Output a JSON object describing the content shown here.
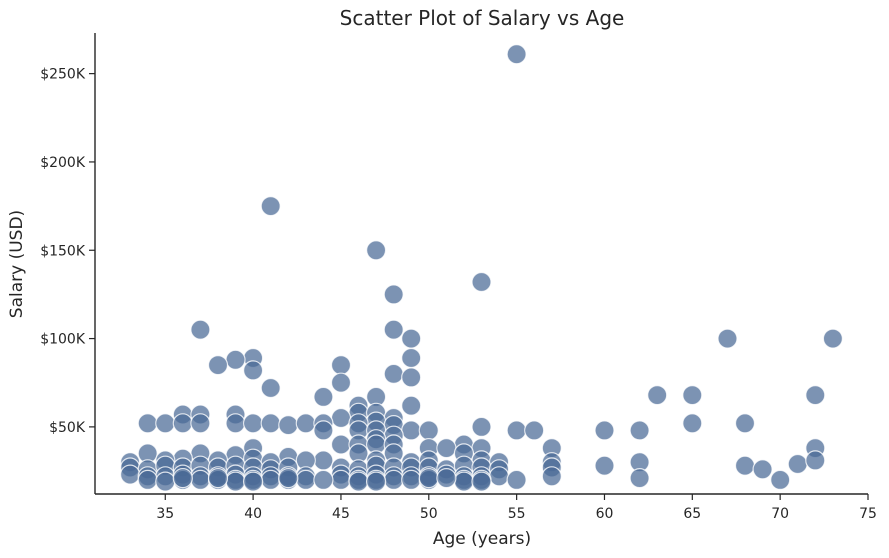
{
  "chart_data": {
    "type": "scatter",
    "title": "Scatter Plot of Salary vs Age",
    "xlabel": "Age (years)",
    "ylabel": "Salary (USD)",
    "xlim": [
      31,
      75
    ],
    "ylim": [
      12000,
      273000
    ],
    "xticks": [
      35,
      40,
      45,
      50,
      55,
      60,
      65,
      70,
      75
    ],
    "yticks": [
      50000,
      100000,
      150000,
      200000,
      250000
    ],
    "ytick_labels": [
      "$50K",
      "$100K",
      "$150K",
      "$200K",
      "$250K"
    ],
    "grid": false,
    "color": "#4a6a96",
    "points": [
      [
        55,
        261000
      ],
      [
        41,
        175000
      ],
      [
        47,
        150000
      ],
      [
        53,
        132000
      ],
      [
        48,
        125000
      ],
      [
        37,
        105000
      ],
      [
        48,
        105000
      ],
      [
        49,
        100000
      ],
      [
        67,
        100000
      ],
      [
        73,
        100000
      ],
      [
        40,
        89000
      ],
      [
        49,
        89000
      ],
      [
        39,
        88000
      ],
      [
        38,
        85000
      ],
      [
        45,
        85000
      ],
      [
        40,
        82000
      ],
      [
        48,
        80000
      ],
      [
        49,
        78000
      ],
      [
        45,
        75000
      ],
      [
        41,
        72000
      ],
      [
        63,
        68000
      ],
      [
        65,
        68000
      ],
      [
        72,
        68000
      ],
      [
        44,
        67000
      ],
      [
        47,
        67000
      ],
      [
        46,
        62000
      ],
      [
        49,
        62000
      ],
      [
        46,
        58000
      ],
      [
        47,
        58000
      ],
      [
        36,
        57000
      ],
      [
        37,
        57000
      ],
      [
        39,
        57000
      ],
      [
        45,
        55000
      ],
      [
        48,
        55000
      ],
      [
        47,
        53000
      ],
      [
        34,
        52000
      ],
      [
        35,
        52000
      ],
      [
        36,
        52000
      ],
      [
        37,
        52000
      ],
      [
        39,
        52000
      ],
      [
        40,
        52000
      ],
      [
        41,
        52000
      ],
      [
        42,
        51000
      ],
      [
        43,
        52000
      ],
      [
        44,
        52000
      ],
      [
        46,
        52000
      ],
      [
        48,
        51000
      ],
      [
        65,
        52000
      ],
      [
        68,
        52000
      ],
      [
        53,
        50000
      ],
      [
        44,
        48000
      ],
      [
        46,
        48000
      ],
      [
        47,
        48000
      ],
      [
        49,
        48000
      ],
      [
        50,
        48000
      ],
      [
        55,
        48000
      ],
      [
        56,
        48000
      ],
      [
        60,
        48000
      ],
      [
        62,
        48000
      ],
      [
        48,
        45000
      ],
      [
        47,
        43000
      ],
      [
        45,
        40000
      ],
      [
        46,
        40000
      ],
      [
        47,
        40000
      ],
      [
        48,
        40000
      ],
      [
        52,
        40000
      ],
      [
        40,
        38000
      ],
      [
        50,
        38000
      ],
      [
        51,
        38000
      ],
      [
        53,
        38000
      ],
      [
        57,
        38000
      ],
      [
        72,
        38000
      ],
      [
        34,
        35000
      ],
      [
        37,
        35000
      ],
      [
        39,
        34000
      ],
      [
        46,
        35000
      ],
      [
        48,
        35000
      ],
      [
        52,
        35000
      ],
      [
        40,
        32000
      ],
      [
        42,
        33000
      ],
      [
        44,
        31000
      ],
      [
        49,
        30000
      ],
      [
        43,
        31000
      ],
      [
        36,
        32000
      ],
      [
        33,
        30000
      ],
      [
        35,
        31000
      ],
      [
        38,
        31000
      ],
      [
        41,
        30000
      ],
      [
        47,
        31000
      ],
      [
        50,
        31000
      ],
      [
        53,
        31000
      ],
      [
        54,
        30000
      ],
      [
        57,
        30000
      ],
      [
        62,
        30000
      ],
      [
        68,
        28000
      ],
      [
        71,
        29000
      ],
      [
        72,
        31000
      ],
      [
        60,
        28000
      ],
      [
        69,
        26000
      ],
      [
        33,
        27000
      ],
      [
        34,
        26000
      ],
      [
        35,
        28000
      ],
      [
        36,
        27000
      ],
      [
        37,
        28000
      ],
      [
        38,
        27000
      ],
      [
        39,
        28000
      ],
      [
        40,
        27000
      ],
      [
        41,
        26000
      ],
      [
        42,
        27000
      ],
      [
        45,
        27000
      ],
      [
        46,
        26000
      ],
      [
        47,
        28000
      ],
      [
        48,
        27000
      ],
      [
        49,
        27000
      ],
      [
        50,
        27000
      ],
      [
        51,
        26000
      ],
      [
        52,
        28000
      ],
      [
        53,
        27000
      ],
      [
        54,
        26000
      ],
      [
        57,
        27000
      ],
      [
        33,
        23000
      ],
      [
        34,
        22000
      ],
      [
        35,
        22000
      ],
      [
        36,
        23000
      ],
      [
        37,
        22000
      ],
      [
        38,
        22000
      ],
      [
        39,
        23000
      ],
      [
        40,
        22000
      ],
      [
        41,
        22000
      ],
      [
        42,
        22000
      ],
      [
        43,
        22000
      ],
      [
        45,
        23000
      ],
      [
        46,
        22000
      ],
      [
        47,
        23000
      ],
      [
        48,
        22000
      ],
      [
        49,
        22000
      ],
      [
        50,
        22000
      ],
      [
        51,
        23000
      ],
      [
        52,
        22000
      ],
      [
        53,
        22000
      ],
      [
        54,
        22000
      ],
      [
        57,
        22000
      ],
      [
        62,
        21000
      ],
      [
        34,
        20000
      ],
      [
        36,
        20000
      ],
      [
        37,
        20000
      ],
      [
        38,
        20000
      ],
      [
        39,
        20000
      ],
      [
        40,
        20000
      ],
      [
        41,
        20000
      ],
      [
        42,
        20000
      ],
      [
        43,
        20000
      ],
      [
        45,
        20000
      ],
      [
        46,
        20000
      ],
      [
        47,
        20000
      ],
      [
        48,
        20000
      ],
      [
        49,
        20000
      ],
      [
        50,
        20000
      ],
      [
        52,
        20000
      ],
      [
        53,
        20000
      ],
      [
        55,
        20000
      ],
      [
        70,
        20000
      ],
      [
        35,
        19000
      ],
      [
        39,
        19000
      ],
      [
        40,
        19000
      ],
      [
        46,
        19000
      ],
      [
        47,
        19000
      ],
      [
        52,
        19000
      ],
      [
        53,
        19000
      ],
      [
        44,
        20000
      ],
      [
        36,
        21000
      ],
      [
        38,
        21000
      ],
      [
        42,
        21000
      ],
      [
        50,
        21000
      ],
      [
        51,
        21000
      ]
    ]
  }
}
